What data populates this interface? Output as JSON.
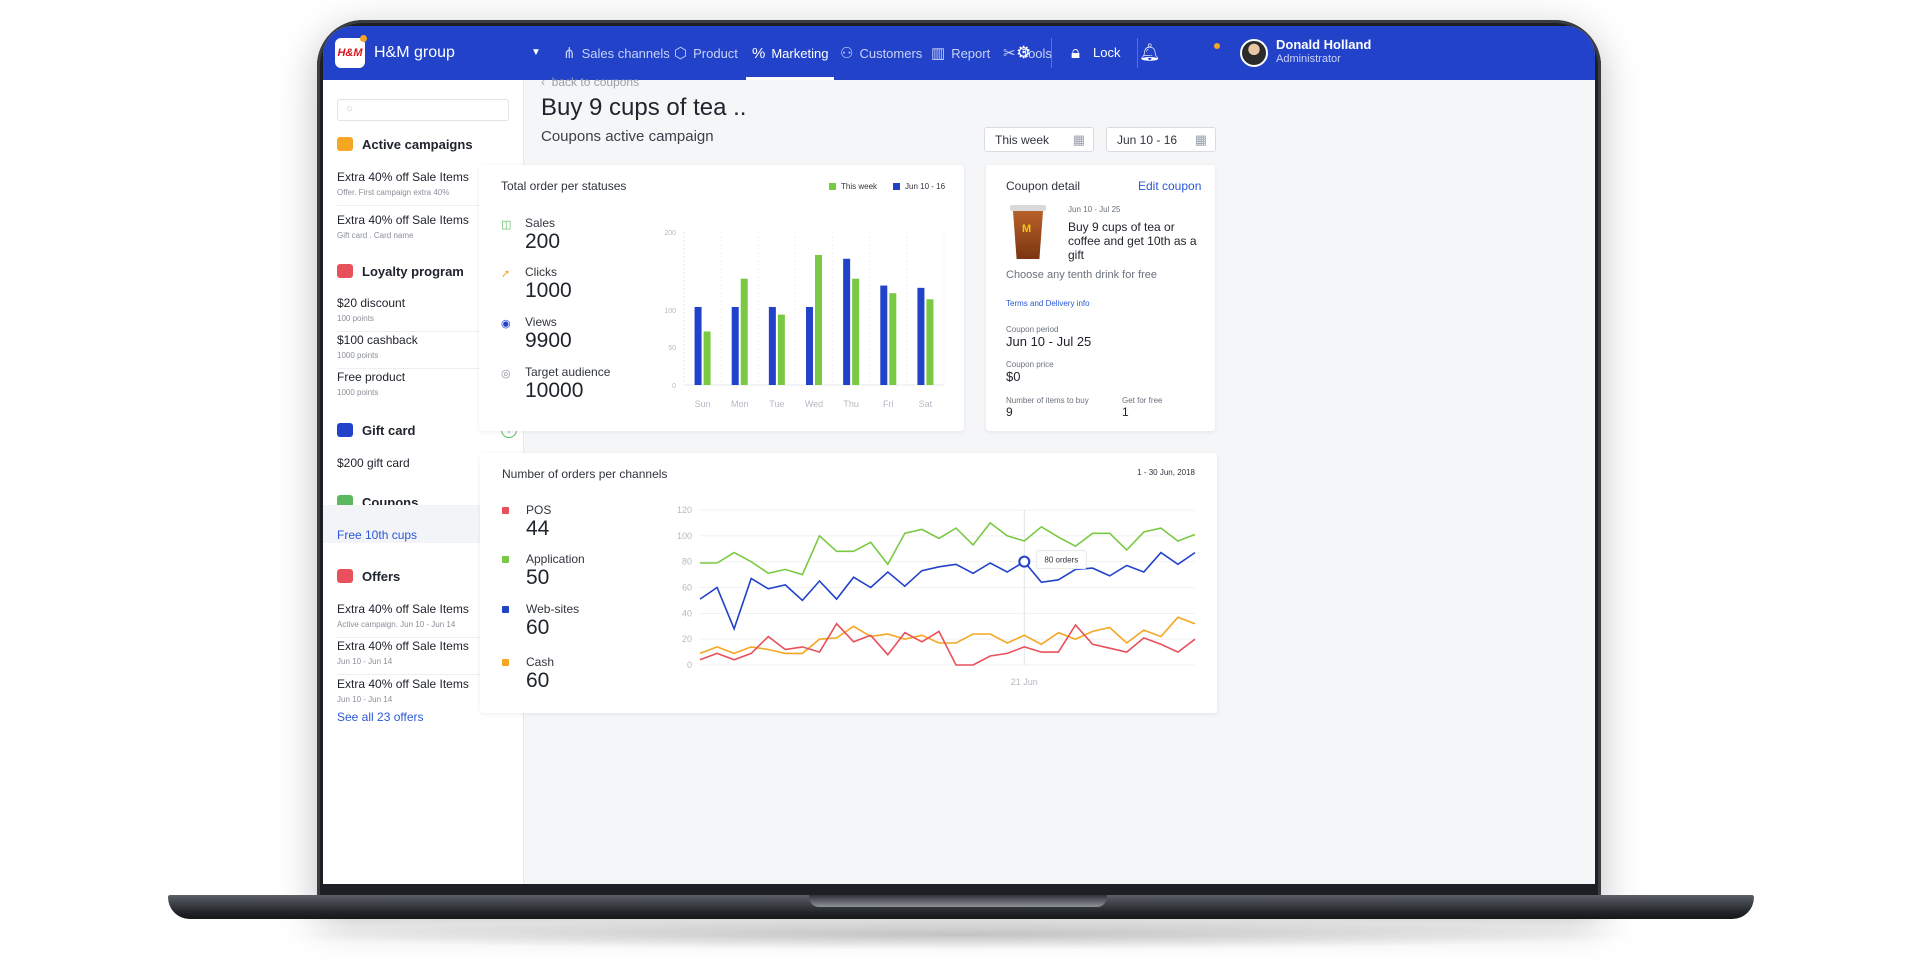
{
  "topbar": {
    "logo_text": "H&M",
    "org_name": "H&M group",
    "nav": [
      {
        "label": "Sales channels",
        "icon": "share-icon"
      },
      {
        "label": "Product",
        "icon": "box-icon"
      },
      {
        "label": "Marketing",
        "icon": "percent-icon",
        "active": true
      },
      {
        "label": "Customers",
        "icon": "user-icon"
      },
      {
        "label": "Report",
        "icon": "bar-chart-icon"
      },
      {
        "label": "Tools",
        "icon": "tools-icon"
      }
    ],
    "lock_label": "Lock",
    "user": {
      "name": "Donald Holland",
      "role": "Administrator"
    }
  },
  "sidebar": {
    "search_placeholder": "",
    "active_campaigns": {
      "title": "Active campaigns",
      "items": [
        {
          "title": "Extra 40% off Sale Items",
          "sub": "Offer. First campaign extra 40%"
        },
        {
          "title": "Extra 40% off Sale Items",
          "sub": "Gift card . Card name"
        }
      ]
    },
    "loyalty": {
      "title": "Loyalty program",
      "items": [
        {
          "title": "$20 discount",
          "sub": "100 points"
        },
        {
          "title": "$100 cashback",
          "sub": "1000 points"
        },
        {
          "title": "Free product",
          "sub": "1000 points"
        }
      ]
    },
    "gift_card": {
      "title": "Gift card",
      "items": [
        {
          "title": "$200 gift card"
        }
      ]
    },
    "coupons": {
      "title": "Coupons",
      "items": [
        {
          "title": "Free 10th cups"
        }
      ]
    },
    "offers": {
      "title": "Offers",
      "items": [
        {
          "title": "Extra 40% off Sale Items",
          "sub": "Active campaign. Jun 10 - Jun 14"
        },
        {
          "title": "Extra 40% off Sale Items",
          "sub": "Jun 10 - Jun 14"
        },
        {
          "title": "Extra 40% off Sale Items",
          "sub": "Jun 10 - Jun 14"
        }
      ],
      "see_all": "See all 23 offers"
    }
  },
  "main": {
    "back_link": "back to coupons",
    "title": "Buy 9 cups of tea ..",
    "subtitle": "Coupons active campaign",
    "range_this_week": "This week",
    "range_dates": "Jun 10 - 16"
  },
  "orders_card": {
    "title": "Total order per statuses",
    "stats": [
      {
        "label": "Sales",
        "value": "200",
        "color": "#5cb85c",
        "icon": "bag-icon"
      },
      {
        "label": "Clicks",
        "value": "1000",
        "color": "#f5a623",
        "icon": "cursor-icon"
      },
      {
        "label": "Views",
        "value": "9900",
        "color": "#2142c9",
        "icon": "eye-icon"
      },
      {
        "label": "Target audience",
        "value": "10000",
        "color": "#8a8f99",
        "icon": "target-icon"
      }
    ]
  },
  "coupon": {
    "header": "Coupon detail",
    "edit_label": "Edit coupon",
    "dates": "Jun 10 - Jul 25",
    "headline": "Buy 9 cups of tea or coffee and get 10th as a gift",
    "description": "Choose any tenth drink for free",
    "terms_link": "Terms and Delivery info",
    "period_label": "Coupon period",
    "period_value": "Jun 10 - Jul 25",
    "price_label": "Coupon price",
    "price_value": "$0",
    "buy_label": "Number of items to buy",
    "buy_value": "9",
    "free_label": "Get for free",
    "free_value": "1"
  },
  "channels_card": {
    "title": "Number of orders per channels",
    "range": "1 - 30 Jun, 2018",
    "stats": [
      {
        "label": "POS",
        "value": "44",
        "color": "#e8505b"
      },
      {
        "label": "Application",
        "value": "50",
        "color": "#7ac943"
      },
      {
        "label": "Web-sites",
        "value": "60",
        "color": "#2142c9"
      },
      {
        "label": "Cash",
        "value": "60",
        "color": "#f5a623"
      }
    ]
  },
  "chart_data": [
    {
      "type": "bar",
      "title": "Total order per statuses",
      "categories": [
        "Sun",
        "Mon",
        "Tue",
        "Wed",
        "Thu",
        "Fri",
        "Sat"
      ],
      "yticks": [
        "0",
        "50",
        "100",
        "200"
      ],
      "ylim": [
        0,
        200
      ],
      "series": [
        {
          "name": "This week",
          "color": "#7ac943",
          "values": [
            70,
            139,
            92,
            170,
            139,
            120,
            112
          ]
        },
        {
          "name": "Jun 10 - 16",
          "color": "#2142c9",
          "values": [
            102,
            102,
            102,
            102,
            165,
            130,
            127
          ]
        }
      ],
      "legend": "top-right"
    },
    {
      "type": "line",
      "title": "Number of orders per channels",
      "yticks": [
        "0",
        "20",
        "40",
        "60",
        "80",
        "100",
        "120"
      ],
      "ylim": [
        0,
        120
      ],
      "x_label_shown": "21 Jun",
      "tooltip": "80 orders",
      "series": [
        {
          "name": "Application",
          "color": "#7ac943",
          "values": [
            79,
            79,
            87,
            80,
            71,
            74,
            70,
            100,
            88,
            88,
            95,
            78,
            102,
            105,
            98,
            106,
            93,
            110,
            100,
            96,
            107,
            99,
            92,
            102,
            102,
            89,
            103,
            106,
            96,
            101
          ]
        },
        {
          "name": "Web-sites",
          "color": "#2142c9",
          "values": [
            51,
            60,
            28,
            67,
            59,
            62,
            50,
            65,
            51,
            68,
            60,
            72,
            61,
            73,
            76,
            78,
            71,
            79,
            72,
            80,
            64,
            66,
            74,
            75,
            69,
            77,
            72,
            87,
            78,
            87
          ]
        },
        {
          "name": "Cash",
          "color": "#f5a623",
          "values": [
            9,
            14,
            9,
            14,
            12,
            9,
            9,
            20,
            21,
            30,
            22,
            24,
            20,
            23,
            17,
            17,
            24,
            24,
            17,
            23,
            16,
            25,
            20,
            26,
            29,
            17,
            27,
            22,
            37,
            32
          ]
        },
        {
          "name": "POS",
          "color": "#e8505b",
          "values": [
            4,
            9,
            4,
            9,
            22,
            12,
            14,
            10,
            32,
            18,
            23,
            8,
            25,
            18,
            26,
            0,
            0,
            7,
            9,
            14,
            10,
            10,
            31,
            16,
            13,
            10,
            21,
            16,
            10,
            20
          ]
        }
      ]
    }
  ]
}
